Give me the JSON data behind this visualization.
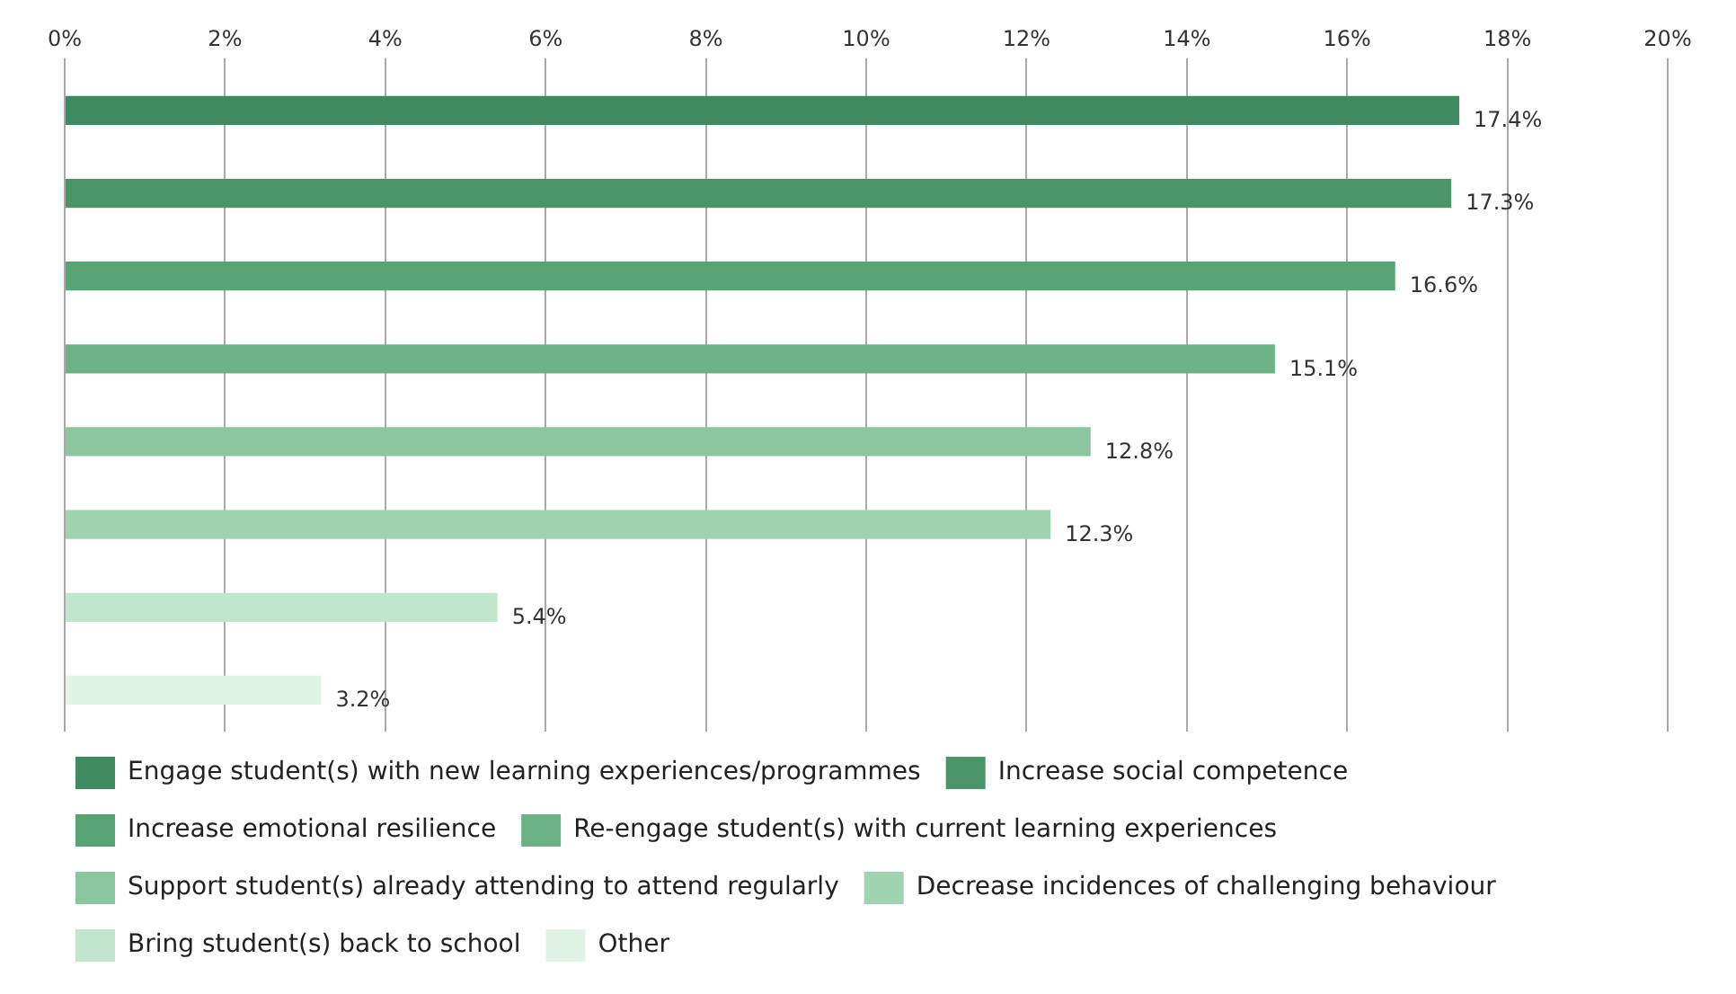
{
  "chart_data": {
    "type": "bar",
    "orientation": "horizontal",
    "categories": [
      null,
      null,
      null,
      null,
      null,
      null,
      null,
      null
    ],
    "series": [
      {
        "name": "Engage student(s) with new learning experiences/programmes",
        "color": "#3e8a60",
        "values": [
          17.4,
          null,
          null,
          null,
          null,
          null,
          null,
          null
        ],
        "value_labels": [
          "17.4%",
          null,
          null,
          null,
          null,
          null,
          null,
          null
        ]
      },
      {
        "name": "Increase social competence",
        "color": "#4a9468",
        "values": [
          null,
          17.3,
          null,
          null,
          null,
          null,
          null,
          null
        ],
        "value_labels": [
          null,
          "17.3%",
          null,
          null,
          null,
          null,
          null,
          null
        ]
      },
      {
        "name": "Increase emotional resilience",
        "color": "#58a374",
        "values": [
          null,
          null,
          16.6,
          null,
          null,
          null,
          null,
          null
        ],
        "value_labels": [
          null,
          null,
          "16.6%",
          null,
          null,
          null,
          null,
          null
        ]
      },
      {
        "name": "Re-engage student(s) with current learning experiences",
        "color": "#6cb285",
        "values": [
          null,
          null,
          null,
          15.1,
          null,
          null,
          null,
          null
        ],
        "value_labels": [
          null,
          null,
          null,
          "15.1%",
          null,
          null,
          null,
          null
        ]
      },
      {
        "name": "Support student(s) already attending to attend regularly",
        "color": "#8ac59e",
        "values": [
          null,
          null,
          null,
          null,
          12.8,
          null,
          null,
          null
        ],
        "value_labels": [
          null,
          null,
          null,
          null,
          "12.8%",
          null,
          null,
          null
        ]
      },
      {
        "name": "Decrease incidences of challenging behaviour",
        "color": "#a0d3b0",
        "values": [
          null,
          null,
          null,
          null,
          null,
          12.3,
          null,
          null
        ],
        "value_labels": [
          null,
          null,
          null,
          null,
          null,
          "12.3%",
          null,
          null
        ]
      },
      {
        "name": "Bring student(s) back to school",
        "color": "#c2e6cd",
        "values": [
          null,
          null,
          null,
          null,
          null,
          null,
          5.4,
          null
        ],
        "value_labels": [
          null,
          null,
          null,
          null,
          null,
          null,
          "5.4%",
          null
        ]
      },
      {
        "name": "Other",
        "color": "#e0f3e6",
        "values": [
          null,
          null,
          null,
          null,
          null,
          null,
          null,
          3.2
        ],
        "value_labels": [
          null,
          null,
          null,
          null,
          null,
          null,
          null,
          "3.2%"
        ]
      }
    ],
    "xlim": [
      0,
      20
    ],
    "xticks": [
      {
        "value": 0,
        "label": "0%"
      },
      {
        "value": 2,
        "label": "2%"
      },
      {
        "value": 4,
        "label": "4%"
      },
      {
        "value": 6,
        "label": "6%"
      },
      {
        "value": 8,
        "label": "8%"
      },
      {
        "value": 10,
        "label": "10%"
      },
      {
        "value": 12,
        "label": "12%"
      },
      {
        "value": 14,
        "label": "14%"
      },
      {
        "value": 16,
        "label": "16%"
      },
      {
        "value": 18,
        "label": "18%"
      },
      {
        "value": 20,
        "label": "20%"
      }
    ],
    "grid": "x",
    "legend": "bottom"
  }
}
